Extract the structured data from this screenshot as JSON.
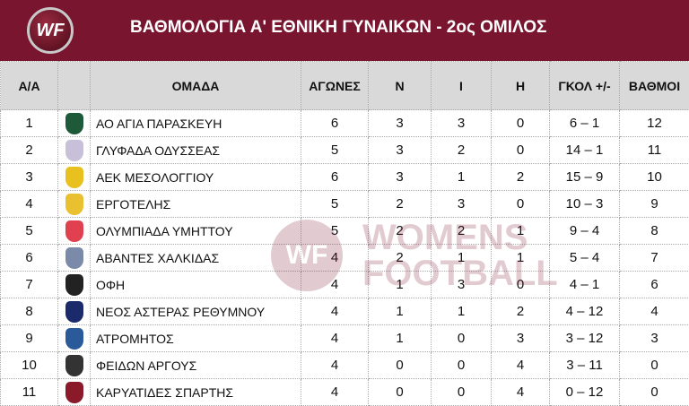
{
  "header": {
    "logo_text": "WF",
    "title": "ΒΑΘΜΟΛΟΓΙΑ Α' ΕΘΝΙΚΗ ΓΥΝΑΙΚΩΝ - 2ος ΟΜΙΛΟΣ",
    "brand_color": "#7a1530"
  },
  "columns": [
    "Α/Α",
    "",
    "ΟΜΑΔΑ",
    "ΑΓΩΝΕΣ",
    "Ν",
    "Ι",
    "Η",
    "ΓΚΟΛ +/-",
    "ΒΑΘΜΟΙ"
  ],
  "rows": [
    {
      "pos": "1",
      "team": "ΑΟ ΑΓΙΑ ΠΑΡΑΣΚΕΥΗ",
      "played": "6",
      "w": "3",
      "d": "3",
      "l": "0",
      "goals": "6 – 1",
      "pts": "12",
      "badge": "#1e5a3a"
    },
    {
      "pos": "2",
      "team": "ΓΛΥΦΑΔΑ ΟΔΥΣΣΕΑΣ",
      "played": "5",
      "w": "3",
      "d": "2",
      "l": "0",
      "goals": "14 – 1",
      "pts": "11",
      "badge": "#c8c0d8"
    },
    {
      "pos": "3",
      "team": "ΑΕΚ ΜΕΣΟΛΟΓΓΙΟΥ",
      "played": "6",
      "w": "3",
      "d": "1",
      "l": "2",
      "goals": "15 – 9",
      "pts": "10",
      "badge": "#e8c020"
    },
    {
      "pos": "4",
      "team": "ΕΡΓΟΤΕΛΗΣ",
      "played": "5",
      "w": "2",
      "d": "3",
      "l": "0",
      "goals": "10 – 3",
      "pts": "9",
      "badge": "#e8c030"
    },
    {
      "pos": "5",
      "team": "ΟΛΥΜΠΙΑΔΑ ΥΜΗΤΤΟΥ",
      "played": "5",
      "w": "2",
      "d": "2",
      "l": "1",
      "goals": "9 – 4",
      "pts": "8",
      "badge": "#e04050"
    },
    {
      "pos": "6",
      "team": "ΑΒΑΝΤΕΣ ΧΑΛΚΙΔΑΣ",
      "played": "4",
      "w": "2",
      "d": "1",
      "l": "1",
      "goals": "5 – 4",
      "pts": "7",
      "badge": "#7a8aa8"
    },
    {
      "pos": "7",
      "team": "ΟΦΗ",
      "played": "4",
      "w": "1",
      "d": "3",
      "l": "0",
      "goals": "4 – 1",
      "pts": "6",
      "badge": "#222222"
    },
    {
      "pos": "8",
      "team": "ΝΕΟΣ ΑΣΤΕΡΑΣ ΡΕΘΥΜΝΟΥ",
      "played": "4",
      "w": "1",
      "d": "1",
      "l": "2",
      "goals": "4 – 12",
      "pts": "4",
      "badge": "#1a2a6a"
    },
    {
      "pos": "9",
      "team": "ΑΤΡΟΜΗΤΟΣ",
      "played": "4",
      "w": "1",
      "d": "0",
      "l": "3",
      "goals": "3 – 12",
      "pts": "3",
      "badge": "#2a5a9a"
    },
    {
      "pos": "10",
      "team": "ΦΕΙΔΩΝ ΑΡΓΟΥΣ",
      "played": "4",
      "w": "0",
      "d": "0",
      "l": "4",
      "goals": "3 – 11",
      "pts": "0",
      "badge": "#333333"
    },
    {
      "pos": "11",
      "team": "ΚΑΡΥΑΤΙΔΕΣ ΣΠΑΡΤΗΣ",
      "played": "4",
      "w": "0",
      "d": "0",
      "l": "4",
      "goals": "0 – 12",
      "pts": "0",
      "badge": "#8a1a2a"
    }
  ],
  "watermark": {
    "logo": "WF",
    "line1": "WOMENS",
    "line2": "FOOTBALL"
  }
}
